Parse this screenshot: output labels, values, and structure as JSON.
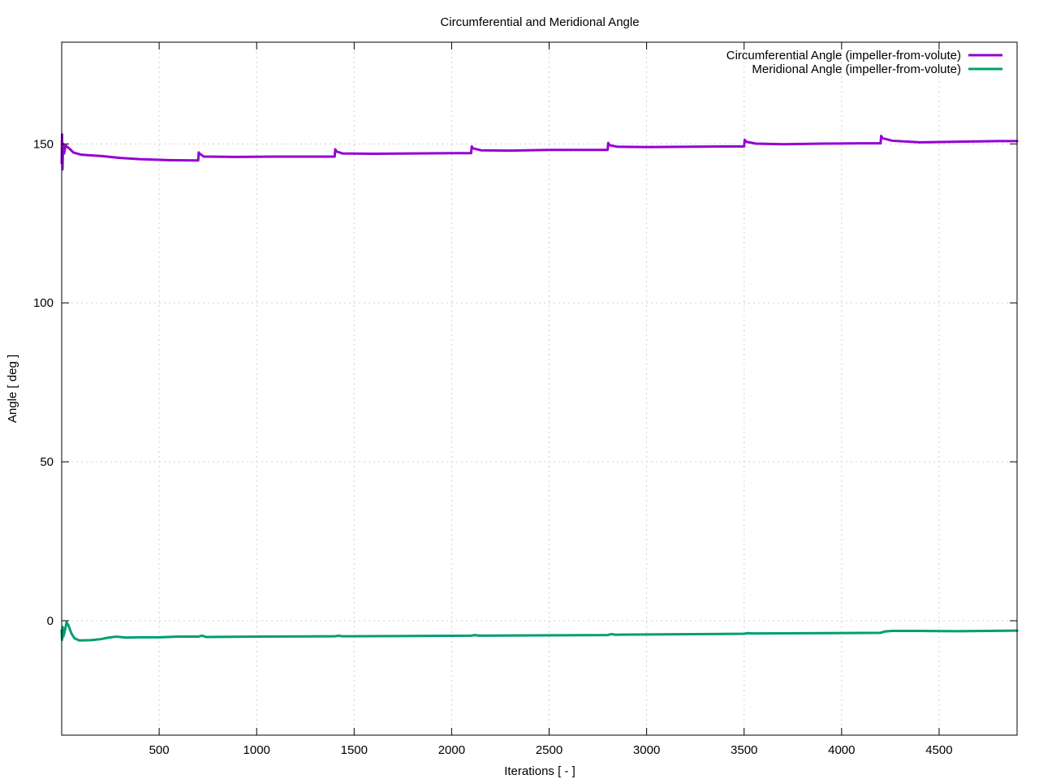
{
  "chart_data": {
    "type": "line",
    "title": "Circumferential and Meridional Angle",
    "xlabel": "Iterations [ - ]",
    "ylabel": "Angle [ deg ]",
    "xlim": [
      0,
      4900
    ],
    "ylim": [
      -36,
      182
    ],
    "xticks": [
      500,
      1000,
      1500,
      2000,
      2500,
      3000,
      3500,
      4000,
      4500
    ],
    "yticks": [
      0,
      50,
      100,
      150
    ],
    "grid": true,
    "legend_position": "top-right",
    "series": [
      {
        "name": "Circumferential Angle (impeller-from-volute)",
        "color": "#9400d3",
        "points": [
          [
            0,
            144
          ],
          [
            2,
            153
          ],
          [
            4,
            142
          ],
          [
            7,
            150
          ],
          [
            12,
            147
          ],
          [
            20,
            149.5
          ],
          [
            40,
            148.5
          ],
          [
            60,
            147.3
          ],
          [
            100,
            146.6
          ],
          [
            200,
            146.2
          ],
          [
            300,
            145.6
          ],
          [
            400,
            145.2
          ],
          [
            550,
            144.9
          ],
          [
            700,
            144.8
          ],
          [
            703,
            147.3
          ],
          [
            710,
            146.8
          ],
          [
            730,
            146.0
          ],
          [
            900,
            145.9
          ],
          [
            1100,
            146.0
          ],
          [
            1300,
            146.0
          ],
          [
            1400,
            146.0
          ],
          [
            1403,
            148.3
          ],
          [
            1410,
            147.6
          ],
          [
            1440,
            147.0
          ],
          [
            1600,
            146.9
          ],
          [
            1800,
            147.0
          ],
          [
            2000,
            147.1
          ],
          [
            2100,
            147.1
          ],
          [
            2103,
            149.2
          ],
          [
            2110,
            148.6
          ],
          [
            2150,
            148.0
          ],
          [
            2300,
            147.9
          ],
          [
            2500,
            148.1
          ],
          [
            2700,
            148.1
          ],
          [
            2800,
            148.1
          ],
          [
            2803,
            150.3
          ],
          [
            2810,
            149.6
          ],
          [
            2850,
            149.1
          ],
          [
            3000,
            149.0
          ],
          [
            3200,
            149.1
          ],
          [
            3400,
            149.2
          ],
          [
            3500,
            149.2
          ],
          [
            3503,
            151.3
          ],
          [
            3510,
            150.7
          ],
          [
            3560,
            150.1
          ],
          [
            3700,
            149.9
          ],
          [
            3900,
            150.1
          ],
          [
            4100,
            150.2
          ],
          [
            4200,
            150.2
          ],
          [
            4203,
            152.5
          ],
          [
            4210,
            151.8
          ],
          [
            4260,
            151.0
          ],
          [
            4400,
            150.5
          ],
          [
            4600,
            150.7
          ],
          [
            4800,
            150.9
          ],
          [
            4900,
            150.9
          ]
        ]
      },
      {
        "name": "Meridional Angle (impeller-from-volute)",
        "color": "#009e73",
        "points": [
          [
            0,
            -3
          ],
          [
            2,
            -6
          ],
          [
            5,
            -2
          ],
          [
            8,
            -5
          ],
          [
            15,
            -3.5
          ],
          [
            25,
            -0.5
          ],
          [
            35,
            -1.5
          ],
          [
            50,
            -4
          ],
          [
            65,
            -5.5
          ],
          [
            90,
            -6.2
          ],
          [
            150,
            -6.1
          ],
          [
            200,
            -5.8
          ],
          [
            240,
            -5.3
          ],
          [
            280,
            -5.0
          ],
          [
            330,
            -5.3
          ],
          [
            400,
            -5.2
          ],
          [
            500,
            -5.2
          ],
          [
            600,
            -5.0
          ],
          [
            700,
            -5.0
          ],
          [
            720,
            -4.7
          ],
          [
            740,
            -5.1
          ],
          [
            1000,
            -5.0
          ],
          [
            1400,
            -4.9
          ],
          [
            1420,
            -4.7
          ],
          [
            1440,
            -4.9
          ],
          [
            2100,
            -4.7
          ],
          [
            2120,
            -4.5
          ],
          [
            2140,
            -4.7
          ],
          [
            2800,
            -4.5
          ],
          [
            2820,
            -4.2
          ],
          [
            2840,
            -4.4
          ],
          [
            3500,
            -4.1
          ],
          [
            3520,
            -3.9
          ],
          [
            3540,
            -4.0
          ],
          [
            4200,
            -3.8
          ],
          [
            4220,
            -3.4
          ],
          [
            4260,
            -3.2
          ],
          [
            4400,
            -3.2
          ],
          [
            4600,
            -3.3
          ],
          [
            4900,
            -3.1
          ]
        ]
      }
    ]
  }
}
